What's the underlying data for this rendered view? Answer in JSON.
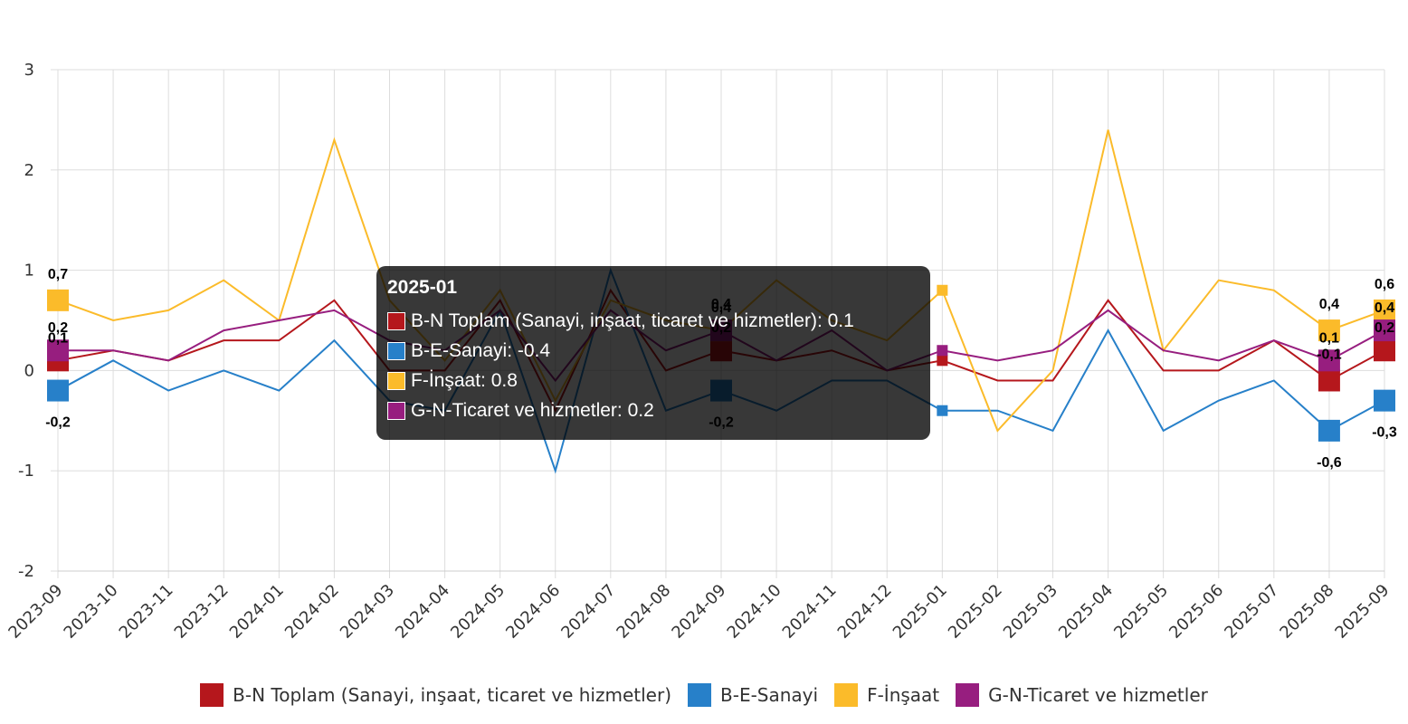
{
  "chart_data": {
    "type": "line",
    "title": "",
    "xlabel": "",
    "ylabel": "",
    "ylim": [
      -2,
      3
    ],
    "yticks": [
      "-2",
      "-1",
      "0",
      "1",
      "2",
      "3"
    ],
    "grid": true,
    "legend_position": "bottom",
    "categories": [
      "2023-09",
      "2023-10",
      "2023-11",
      "2023-12",
      "2024-01",
      "2024-02",
      "2024-03",
      "2024-04",
      "2024-05",
      "2024-06",
      "2024-07",
      "2024-08",
      "2024-09",
      "2024-10",
      "2024-11",
      "2024-12",
      "2025-01",
      "2025-02",
      "2025-03",
      "2025-04",
      "2025-05",
      "2025-06",
      "2025-07",
      "2025-08",
      "2025-09"
    ],
    "series": [
      {
        "name": "B-N Toplam (Sanayi, inşaat, ticaret ve hizmetler)",
        "color": "#b5171c",
        "values": [
          0.1,
          0.2,
          0.1,
          0.3,
          0.3,
          0.7,
          0.0,
          0.0,
          0.7,
          -0.4,
          0.8,
          0.0,
          0.2,
          0.1,
          0.2,
          0.0,
          0.1,
          -0.1,
          -0.1,
          0.7,
          0.0,
          0.0,
          0.3,
          -0.1,
          0.2
        ]
      },
      {
        "name": "B-E-Sanayi",
        "color": "#2780c9",
        "values": [
          -0.2,
          0.1,
          -0.2,
          0.0,
          -0.2,
          0.3,
          -0.3,
          -0.4,
          0.6,
          -1.0,
          1.0,
          -0.4,
          -0.2,
          -0.4,
          -0.1,
          -0.1,
          -0.4,
          -0.4,
          -0.6,
          0.4,
          -0.6,
          -0.3,
          -0.1,
          -0.6,
          -0.3
        ]
      },
      {
        "name": "F-İnşaat",
        "color": "#fbbb2a",
        "values": [
          0.7,
          0.5,
          0.6,
          0.9,
          0.5,
          2.3,
          0.7,
          0.1,
          0.8,
          -0.3,
          0.7,
          0.5,
          0.4,
          0.9,
          0.5,
          0.3,
          0.8,
          -0.6,
          0.0,
          2.4,
          0.2,
          0.9,
          0.8,
          0.4,
          0.6
        ]
      },
      {
        "name": "G-N-Ticaret ve hizmetler",
        "color": "#971e7f",
        "values": [
          0.2,
          0.2,
          0.1,
          0.4,
          0.5,
          0.6,
          0.3,
          0.2,
          0.6,
          -0.1,
          0.6,
          0.2,
          0.4,
          0.1,
          0.4,
          0.0,
          0.2,
          0.1,
          0.2,
          0.6,
          0.2,
          0.1,
          0.3,
          0.1,
          0.4
        ]
      }
    ],
    "data_labels": [
      {
        "series": 0,
        "index": 0,
        "text": "0,1"
      },
      {
        "series": 1,
        "index": 0,
        "text": "-0,2"
      },
      {
        "series": 2,
        "index": 0,
        "text": "0,7"
      },
      {
        "series": 3,
        "index": 0,
        "text": "0,2"
      },
      {
        "series": 0,
        "index": 12,
        "text": "0,2"
      },
      {
        "series": 1,
        "index": 12,
        "text": "-0,2"
      },
      {
        "series": 2,
        "index": 12,
        "text": "0,4"
      },
      {
        "series": 3,
        "index": 12,
        "text": "0,4"
      },
      {
        "series": 0,
        "index": 23,
        "text": "-0,1"
      },
      {
        "series": 1,
        "index": 23,
        "text": "-0,6"
      },
      {
        "series": 2,
        "index": 23,
        "text": "0,4"
      },
      {
        "series": 3,
        "index": 23,
        "text": "0,1"
      },
      {
        "series": 0,
        "index": 24,
        "text": "0,2"
      },
      {
        "series": 1,
        "index": 24,
        "text": "-0,3"
      },
      {
        "series": 2,
        "index": 24,
        "text": "0,6"
      },
      {
        "series": 3,
        "index": 24,
        "text": "0,4"
      }
    ]
  },
  "tooltip": {
    "title": "2025-01",
    "rows": [
      {
        "label": "B-N Toplam (Sanayi, inşaat, ticaret ve hizmetler): 0.1",
        "color": "#b5171c"
      },
      {
        "label": "B-E-Sanayi: -0.4",
        "color": "#2780c9"
      },
      {
        "label": "F-İnşaat: 0.8",
        "color": "#fbbb2a"
      },
      {
        "label": "G-N-Ticaret ve hizmetler: 0.2",
        "color": "#971e7f"
      }
    ]
  }
}
